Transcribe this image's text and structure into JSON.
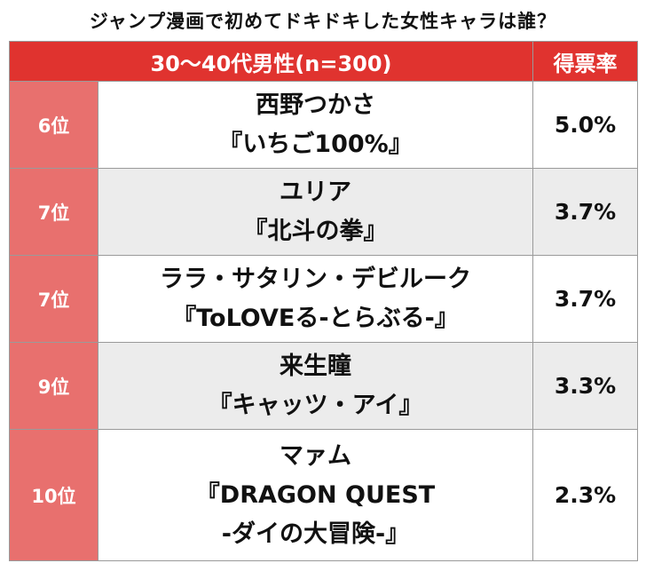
{
  "title": "ジャンプ漫画で初めてドキドキした女性キャラは誰？",
  "header": {
    "group": "30〜40代男性(n=300)",
    "metric": "得票率"
  },
  "rows": [
    {
      "rank": "6位",
      "name": "西野つかさ",
      "work": [
        "『いちご100%』"
      ],
      "pct": "5.0%"
    },
    {
      "rank": "7位",
      "name": "ユリア",
      "work": [
        "『北斗の拳』"
      ],
      "pct": "3.7%"
    },
    {
      "rank": "7位",
      "name": "ララ・サタリン・デビルーク",
      "work": [
        "『ToLOVEる-とらぶる-』"
      ],
      "pct": "3.7%"
    },
    {
      "rank": "9位",
      "name": "来生瞳",
      "work": [
        "『キャッツ・アイ』"
      ],
      "pct": "3.3%"
    },
    {
      "rank": "10位",
      "name": "マァム",
      "work": [
        "『DRAGON QUEST",
        "-ダイの大冒険-』"
      ],
      "pct": "2.3%"
    }
  ],
  "colors": {
    "header": "#e0332f",
    "rank_cell": "#e8706e",
    "alt_row": "#ececec"
  }
}
